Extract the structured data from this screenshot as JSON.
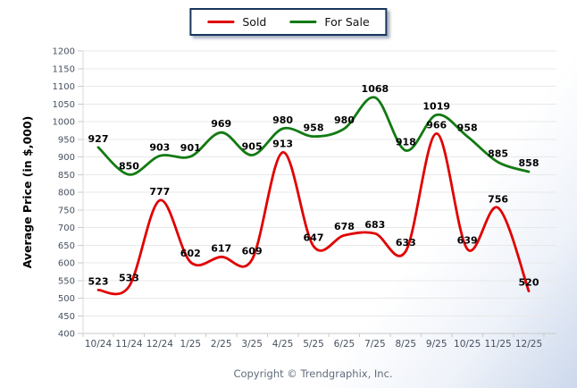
{
  "legend": {
    "items": [
      {
        "label": "Sold",
        "color": "#e00000"
      },
      {
        "label": "For Sale",
        "color": "#127a12"
      }
    ],
    "border_color": "#17365d"
  },
  "chart_data": {
    "type": "line",
    "title": "",
    "categories": [
      "10/24",
      "11/24",
      "12/24",
      "1/25",
      "2/25",
      "3/25",
      "4/25",
      "5/25",
      "6/25",
      "7/25",
      "8/25",
      "9/25",
      "10/25",
      "11/25",
      "12/25"
    ],
    "series": [
      {
        "name": "Sold",
        "color": "#e00000",
        "values": [
          523,
          533,
          777,
          602,
          617,
          609,
          913,
          647,
          678,
          683,
          633,
          966,
          639,
          756,
          520
        ]
      },
      {
        "name": "For Sale",
        "color": "#127a12",
        "values": [
          927,
          850,
          903,
          901,
          969,
          905,
          980,
          958,
          980,
          1068,
          918,
          1019,
          958,
          885,
          858
        ]
      }
    ],
    "xlabel": "",
    "ylabel": "Average Price (in $,000)",
    "ylim": [
      400,
      1200
    ],
    "ytick_step": 50,
    "grid": true,
    "smooth": true,
    "data_labels": true,
    "legend_position": "top-center",
    "grid_color": "#e8e8e8",
    "axis_color": "#c9c9c9",
    "tick_label_color": "#45505f",
    "data_label_color": "#000000"
  },
  "footer": {
    "copyright": "Copyright © Trendgraphix, Inc."
  }
}
